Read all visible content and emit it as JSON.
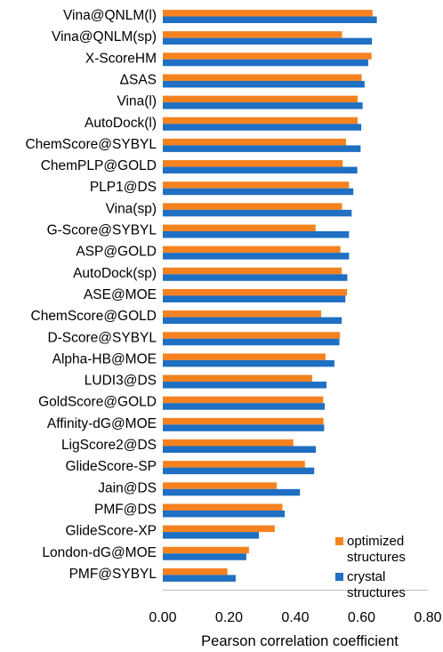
{
  "chart_data": {
    "type": "bar",
    "orientation": "horizontal",
    "title": "",
    "xlabel": "Pearson correlation coefficient",
    "ylabel": "",
    "xlim": [
      0,
      0.8
    ],
    "xticks": [
      "0.00",
      "0.20",
      "0.40",
      "0.60",
      "0.80"
    ],
    "grid": false,
    "legend_position": "bottom-right",
    "categories": [
      "Vina@QNLM(l)",
      "Vina@QNLM(sp)",
      "X-ScoreHM",
      "ΔSAS",
      "Vina(l)",
      "AutoDock(l)",
      "ChemScore@SYBYL",
      "ChemPLP@GOLD",
      "PLP1@DS",
      "Vina(sp)",
      "G-Score@SYBYL",
      "ASP@GOLD",
      "AutoDock(sp)",
      "ASE@MOE",
      "ChemScore@GOLD",
      "D-Score@SYBYL",
      "Alpha-HB@MOE",
      "LUDI3@DS",
      "GoldScore@GOLD",
      "Affinity-dG@MOE",
      "LigScore2@DS",
      "GlideScore-SP",
      "Jain@DS",
      "PMF@DS",
      "GlideScore-XP",
      "London-dG@MOE",
      "PMF@SYBYL"
    ],
    "series": [
      {
        "name": "optimized structures",
        "color": "#f5821f",
        "values": [
          0.633,
          0.541,
          0.63,
          0.6,
          0.588,
          0.588,
          0.553,
          0.543,
          0.562,
          0.541,
          0.461,
          0.536,
          0.54,
          0.556,
          0.478,
          0.535,
          0.491,
          0.451,
          0.484,
          0.485,
          0.394,
          0.429,
          0.344,
          0.361,
          0.338,
          0.26,
          0.195
        ]
      },
      {
        "name": "crystal structures",
        "color": "#1f6fc3",
        "values": [
          0.646,
          0.631,
          0.62,
          0.609,
          0.603,
          0.599,
          0.597,
          0.587,
          0.575,
          0.57,
          0.562,
          0.562,
          0.557,
          0.551,
          0.54,
          0.533,
          0.518,
          0.494,
          0.489,
          0.487,
          0.462,
          0.457,
          0.414,
          0.368,
          0.29,
          0.252,
          0.22
        ]
      }
    ]
  },
  "legend": {
    "items": [
      {
        "line1": "optimized",
        "line2": "structures",
        "color": "#f5821f"
      },
      {
        "line1": "crystal",
        "line2": "structures",
        "color": "#1f6fc3"
      }
    ]
  }
}
